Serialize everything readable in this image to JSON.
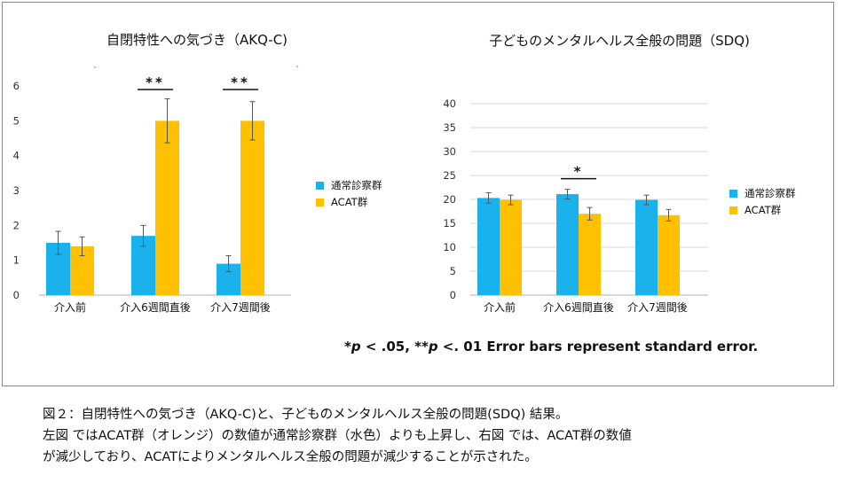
{
  "colors": {
    "series1": "#1ab2ec",
    "series2": "#ffc000",
    "axis": "#bfbfbf",
    "error": "#555555",
    "sig": "#111111"
  },
  "chart_data": [
    {
      "type": "bar",
      "title": "自閉特性への気づき（AKQ-C)",
      "categories": [
        "介入前",
        "介入6週間直後",
        "介入7週間後"
      ],
      "ylim": [
        0,
        6
      ],
      "yticks": [
        "0",
        "1",
        "2",
        "3",
        "4",
        "5",
        "6"
      ],
      "grid": false,
      "legend_position": "right",
      "series": [
        {
          "name": "通常診察群",
          "values": [
            1.5,
            1.7,
            0.9
          ],
          "errors": [
            0.33,
            0.3,
            0.23
          ]
        },
        {
          "name": "ACAT群",
          "values": [
            1.4,
            5.0,
            5.0
          ],
          "errors": [
            0.27,
            0.63,
            0.55
          ]
        }
      ],
      "significance": [
        {
          "category": "介入6週間直後",
          "label": "**"
        },
        {
          "category": "介入7週間後",
          "label": "**"
        }
      ]
    },
    {
      "type": "bar",
      "title": "子どものメンタルヘルス全般の問題（SDQ)",
      "categories": [
        "介入前",
        "介入6週間直後",
        "介入7週間後"
      ],
      "ylim": [
        0,
        40
      ],
      "yticks": [
        "0",
        "5",
        "10",
        "15",
        "20",
        "25",
        "30",
        "35",
        "40"
      ],
      "grid": true,
      "legend_position": "right",
      "series": [
        {
          "name": "通常診察群",
          "values": [
            20.3,
            21.1,
            19.9
          ],
          "errors": [
            1.1,
            1.0,
            1.0
          ]
        },
        {
          "name": "ACAT群",
          "values": [
            19.9,
            17.0,
            16.7
          ],
          "errors": [
            1.0,
            1.3,
            1.2
          ]
        }
      ],
      "significance": [
        {
          "category": "介入6週間直後",
          "label": "*"
        }
      ]
    }
  ],
  "stat_note": {
    "p1_prefix": "*",
    "p1_var": "p",
    "p1_rest": " < .05, **",
    "p2_var": "p",
    "p2_rest": " <. 01 Error bars represent standard error."
  },
  "caption": {
    "line1": "図２：自閉特性への気づき（AKQ-C)と、子どものメンタルヘルス全般の問題(SDQ) 結果。",
    "line2": "左図 ではACAT群（オレンジ）の数値が通常診察群（水色）よりも上昇し、右図 では、ACAT群の数値",
    "line3": "が減少しており、ACATによりメンタルヘルス全般の問題が減少することが示された。"
  }
}
